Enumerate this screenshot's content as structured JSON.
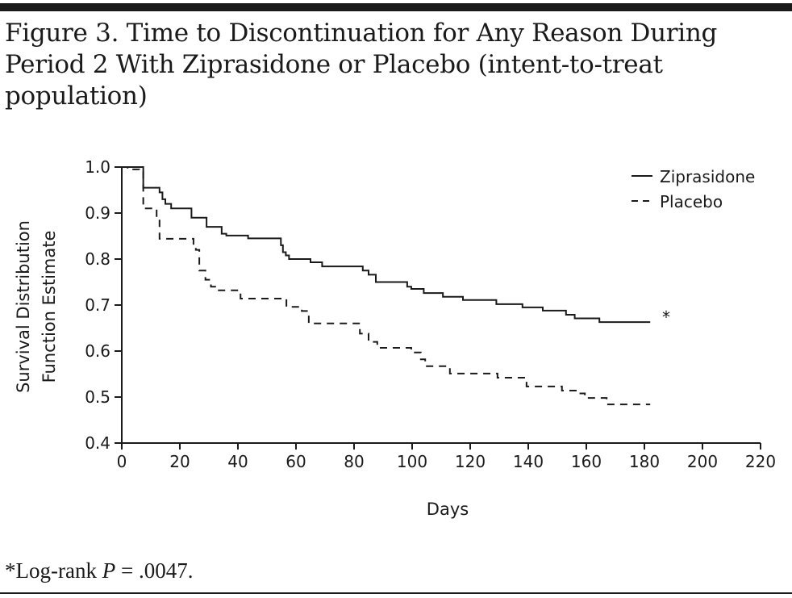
{
  "title": "Figure 3. Time to Discontinuation for Any Reason During Period 2 With Ziprasidone or Placebo (intent-to-treat population)",
  "footnote": {
    "prefix": "*Log-rank ",
    "p_label": "P",
    "suffix": " = .0047."
  },
  "chart_data": {
    "type": "line",
    "step": true,
    "xlabel": "Days",
    "ylabel_lines": [
      "Survival Distribution",
      "Function Estimate"
    ],
    "xlim": [
      0,
      220
    ],
    "ylim": [
      0.4,
      1.0
    ],
    "xticks": [
      "0",
      "20",
      "40",
      "60",
      "80",
      "100",
      "120",
      "140",
      "160",
      "180",
      "200",
      "220"
    ],
    "yticks": [
      "0.4",
      "0.5",
      "0.6",
      "0.7",
      "0.8",
      "0.9",
      "1.0"
    ],
    "grid": false,
    "legend_position": "top-right",
    "annotation": "*",
    "series": [
      {
        "name": "Ziprasidone",
        "style": "solid",
        "x": [
          0,
          7.4,
          13,
          14,
          15,
          17,
          24,
          29.2,
          34.4,
          36,
          43.5,
          54.8,
          55.5,
          56.5,
          57.6,
          65,
          69,
          83,
          85,
          87.5,
          98.3,
          99.7,
          104,
          110.6,
          117.5,
          129,
          138,
          145,
          153,
          156,
          164.5,
          182
        ],
        "y": [
          1.0,
          0.955,
          0.945,
          0.93,
          0.92,
          0.91,
          0.89,
          0.87,
          0.855,
          0.851,
          0.845,
          0.83,
          0.815,
          0.808,
          0.8,
          0.793,
          0.784,
          0.775,
          0.766,
          0.75,
          0.74,
          0.735,
          0.726,
          0.718,
          0.711,
          0.702,
          0.695,
          0.688,
          0.679,
          0.671,
          0.663,
          0.663
        ]
      },
      {
        "name": "Placebo",
        "style": "dashed",
        "x": [
          0,
          2,
          6,
          7.4,
          12,
          13,
          24.7,
          25.5,
          26.7,
          28.8,
          30.7,
          33,
          40.9,
          56.7,
          62,
          64.4,
          82,
          85,
          88,
          99.7,
          103,
          104.5,
          113,
          129.4,
          139.4,
          151.6,
          157,
          159.5,
          167,
          182
        ],
        "y": [
          1.0,
          0.995,
          0.99,
          0.91,
          0.887,
          0.844,
          0.833,
          0.82,
          0.775,
          0.755,
          0.74,
          0.732,
          0.714,
          0.696,
          0.687,
          0.66,
          0.638,
          0.62,
          0.607,
          0.597,
          0.582,
          0.567,
          0.551,
          0.542,
          0.523,
          0.514,
          0.508,
          0.498,
          0.484,
          0.484
        ]
      }
    ]
  }
}
